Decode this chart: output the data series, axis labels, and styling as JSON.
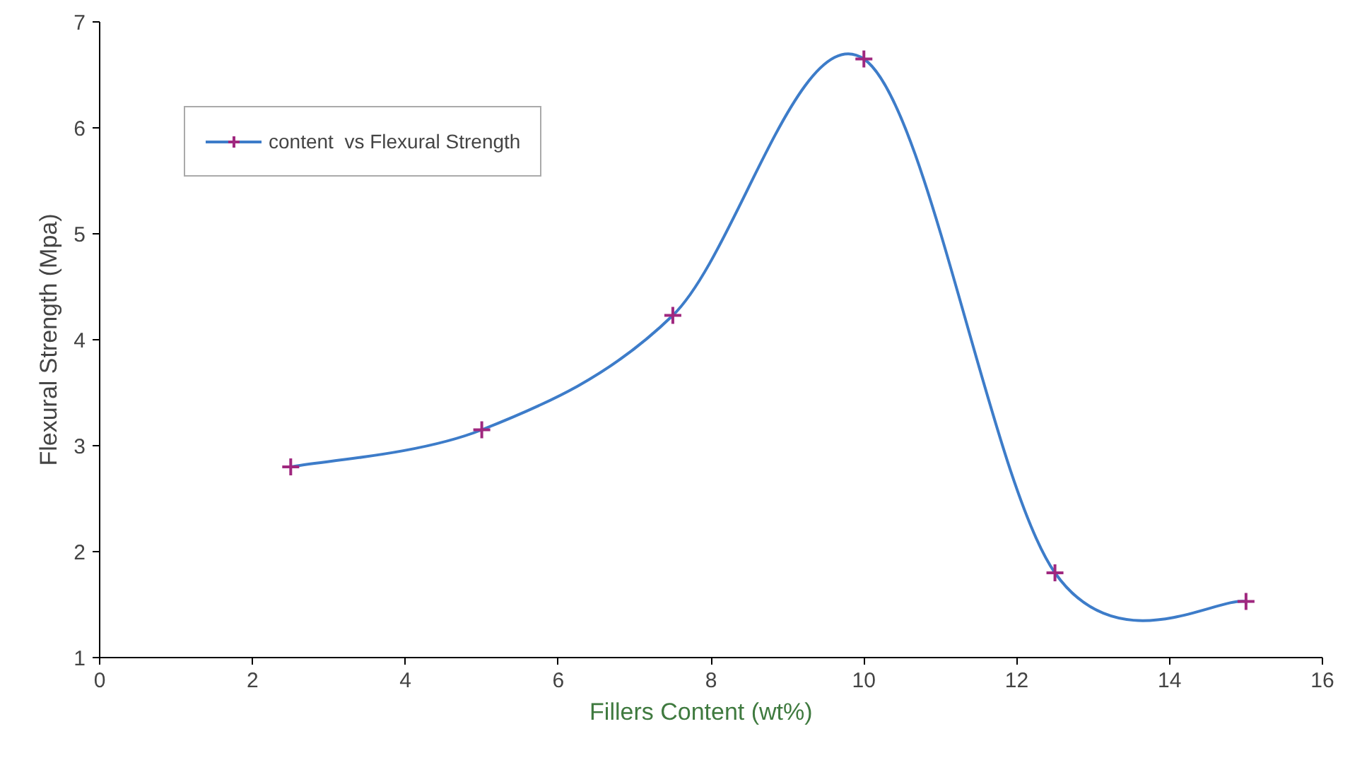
{
  "chart_data": {
    "type": "line",
    "xlabel": "Fillers Content    (wt%)",
    "ylabel": "Flexural Strength (Mpa)",
    "x": [
      2.5,
      5,
      7.5,
      10,
      12.5,
      15
    ],
    "series": [
      {
        "name": "content  vs Flexural Strength",
        "color": "#3d7cc9",
        "colors": [
          "#a0287f",
          "#a0287f",
          "#a0287f",
          "#a0287f",
          "#a0287f",
          "#a0287f"
        ],
        "values": [
          2.8,
          3.15,
          4.23,
          6.65,
          1.8,
          1.53
        ]
      }
    ],
    "xlim": [
      0,
      16
    ],
    "ylim": [
      1,
      7
    ],
    "xticks": [
      0,
      2,
      4,
      6,
      8,
      10,
      12,
      14,
      16
    ],
    "yticks": [
      1,
      2,
      3,
      4,
      5,
      6,
      7
    ],
    "grid": false,
    "legend": "top left",
    "marker": "cross",
    "line_style": "solid"
  }
}
